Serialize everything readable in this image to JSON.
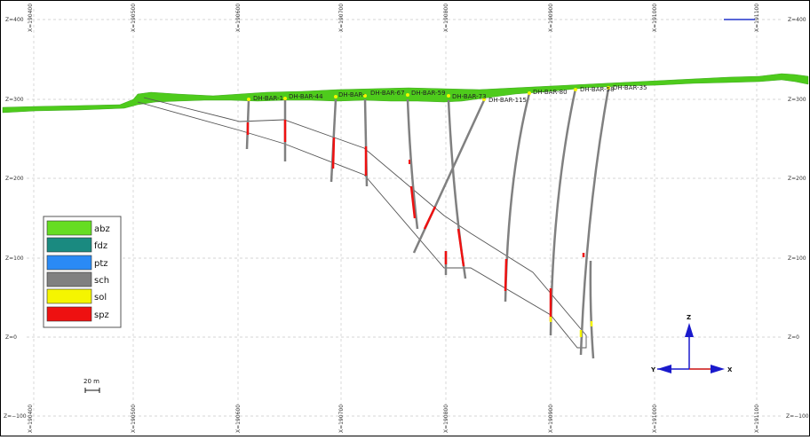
{
  "colors": {
    "abz": "#66dd22",
    "fdz": "#1a8a80",
    "ptz": "#2a8af5",
    "sch": "#808080",
    "sol": "#f5f500",
    "spz": "#ee1111",
    "topography": "#4ecb1c",
    "frame": "#000000"
  },
  "elevation_labels": [
    "Z=400",
    "Z=300",
    "Z=200",
    "Z=100",
    "Z=0",
    "Z=−100"
  ],
  "easting_labels": [
    "X=190400",
    "X=190500",
    "X=190600",
    "X=190700",
    "X=190800",
    "X=190900",
    "X=191000",
    "X=191100"
  ],
  "legend": [
    {
      "code": "abz",
      "label": "abz",
      "color": "#66dd22"
    },
    {
      "code": "fdz",
      "label": "fdz",
      "color": "#1a8a80"
    },
    {
      "code": "ptz",
      "label": "ptz",
      "color": "#2a8af5"
    },
    {
      "code": "sch",
      "label": "sch",
      "color": "#808080"
    },
    {
      "code": "sol",
      "label": "sol",
      "color": "#f5f500"
    },
    {
      "code": "spz",
      "label": "spz",
      "color": "#ee1111"
    }
  ],
  "drillholes": [
    {
      "label": "DH-BAR-1"
    },
    {
      "label": "DH-BAR-44"
    },
    {
      "label": "DH-BAR-"
    },
    {
      "label": "DH-BAR-67"
    },
    {
      "label": "DH-BAR-59"
    },
    {
      "label": "DH-BAR-73"
    },
    {
      "label": "DH-BAR-115"
    },
    {
      "label": "DH-BAR-80"
    },
    {
      "label": "DH-BAR-58"
    },
    {
      "label": "DH-BAR-35"
    }
  ],
  "scale_bar": {
    "label": "20 m"
  },
  "axes_widget": {
    "z": "Z",
    "x": "X",
    "y": "Y"
  }
}
